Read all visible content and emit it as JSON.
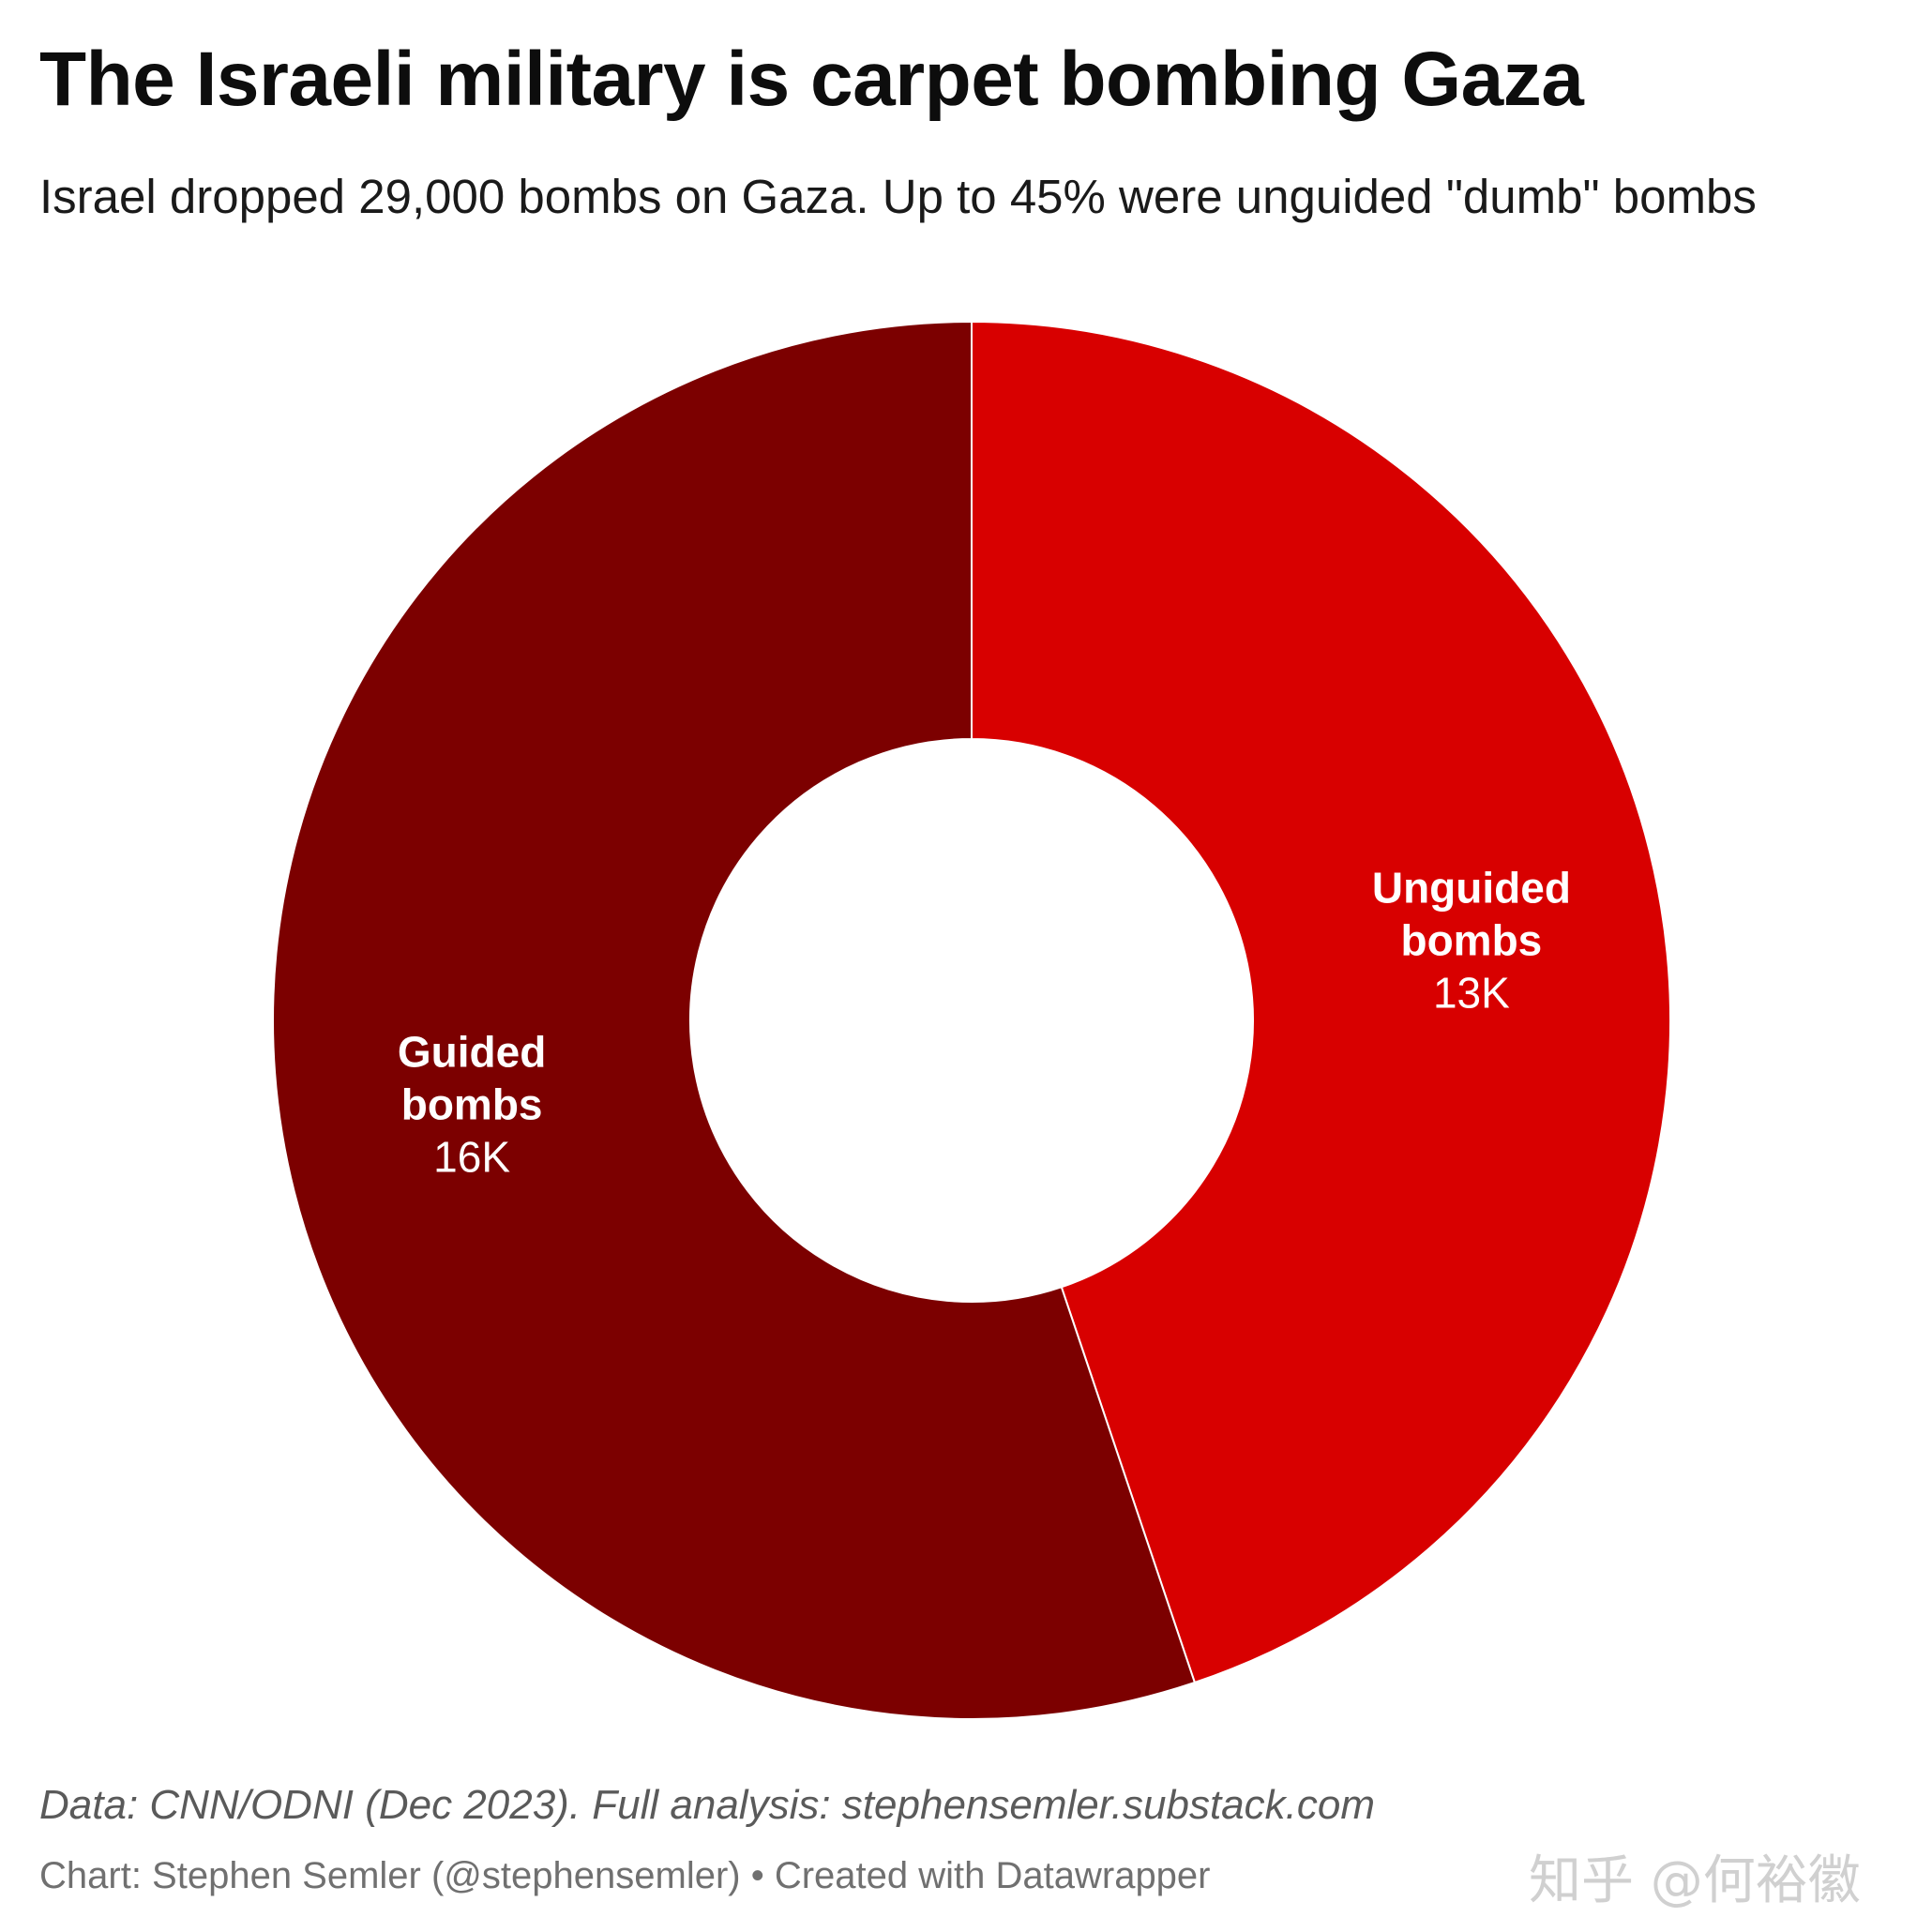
{
  "title": "The Israeli military is carpet bombing Gaza",
  "subtitle": "Israel dropped 29,000 bombs on Gaza. Up to 45% were unguided \"dumb\" bombs",
  "notes": "Data: CNN/ODNI (Dec 2023). Full analysis: stephensemler.substack.com",
  "credit": "Chart: Stephen Semler (@stephensemler) • Created with Datawrapper",
  "watermark": "知乎 @何裕徽",
  "chart_data": {
    "type": "pie",
    "variant": "donut",
    "total": 29000,
    "series": [
      {
        "name": "Unguided bombs",
        "label_lines": [
          "Unguided",
          "bombs"
        ],
        "value": 13000,
        "value_label": "13K",
        "color": "#d80000"
      },
      {
        "name": "Guided bombs",
        "label_lines": [
          "Guided",
          "bombs"
        ],
        "value": 16000,
        "value_label": "16K",
        "color": "#7c0000"
      }
    ],
    "start": "12 o'clock",
    "direction": "clockwise",
    "label_color": "#ffffff",
    "separator_color": "#ffffff"
  }
}
